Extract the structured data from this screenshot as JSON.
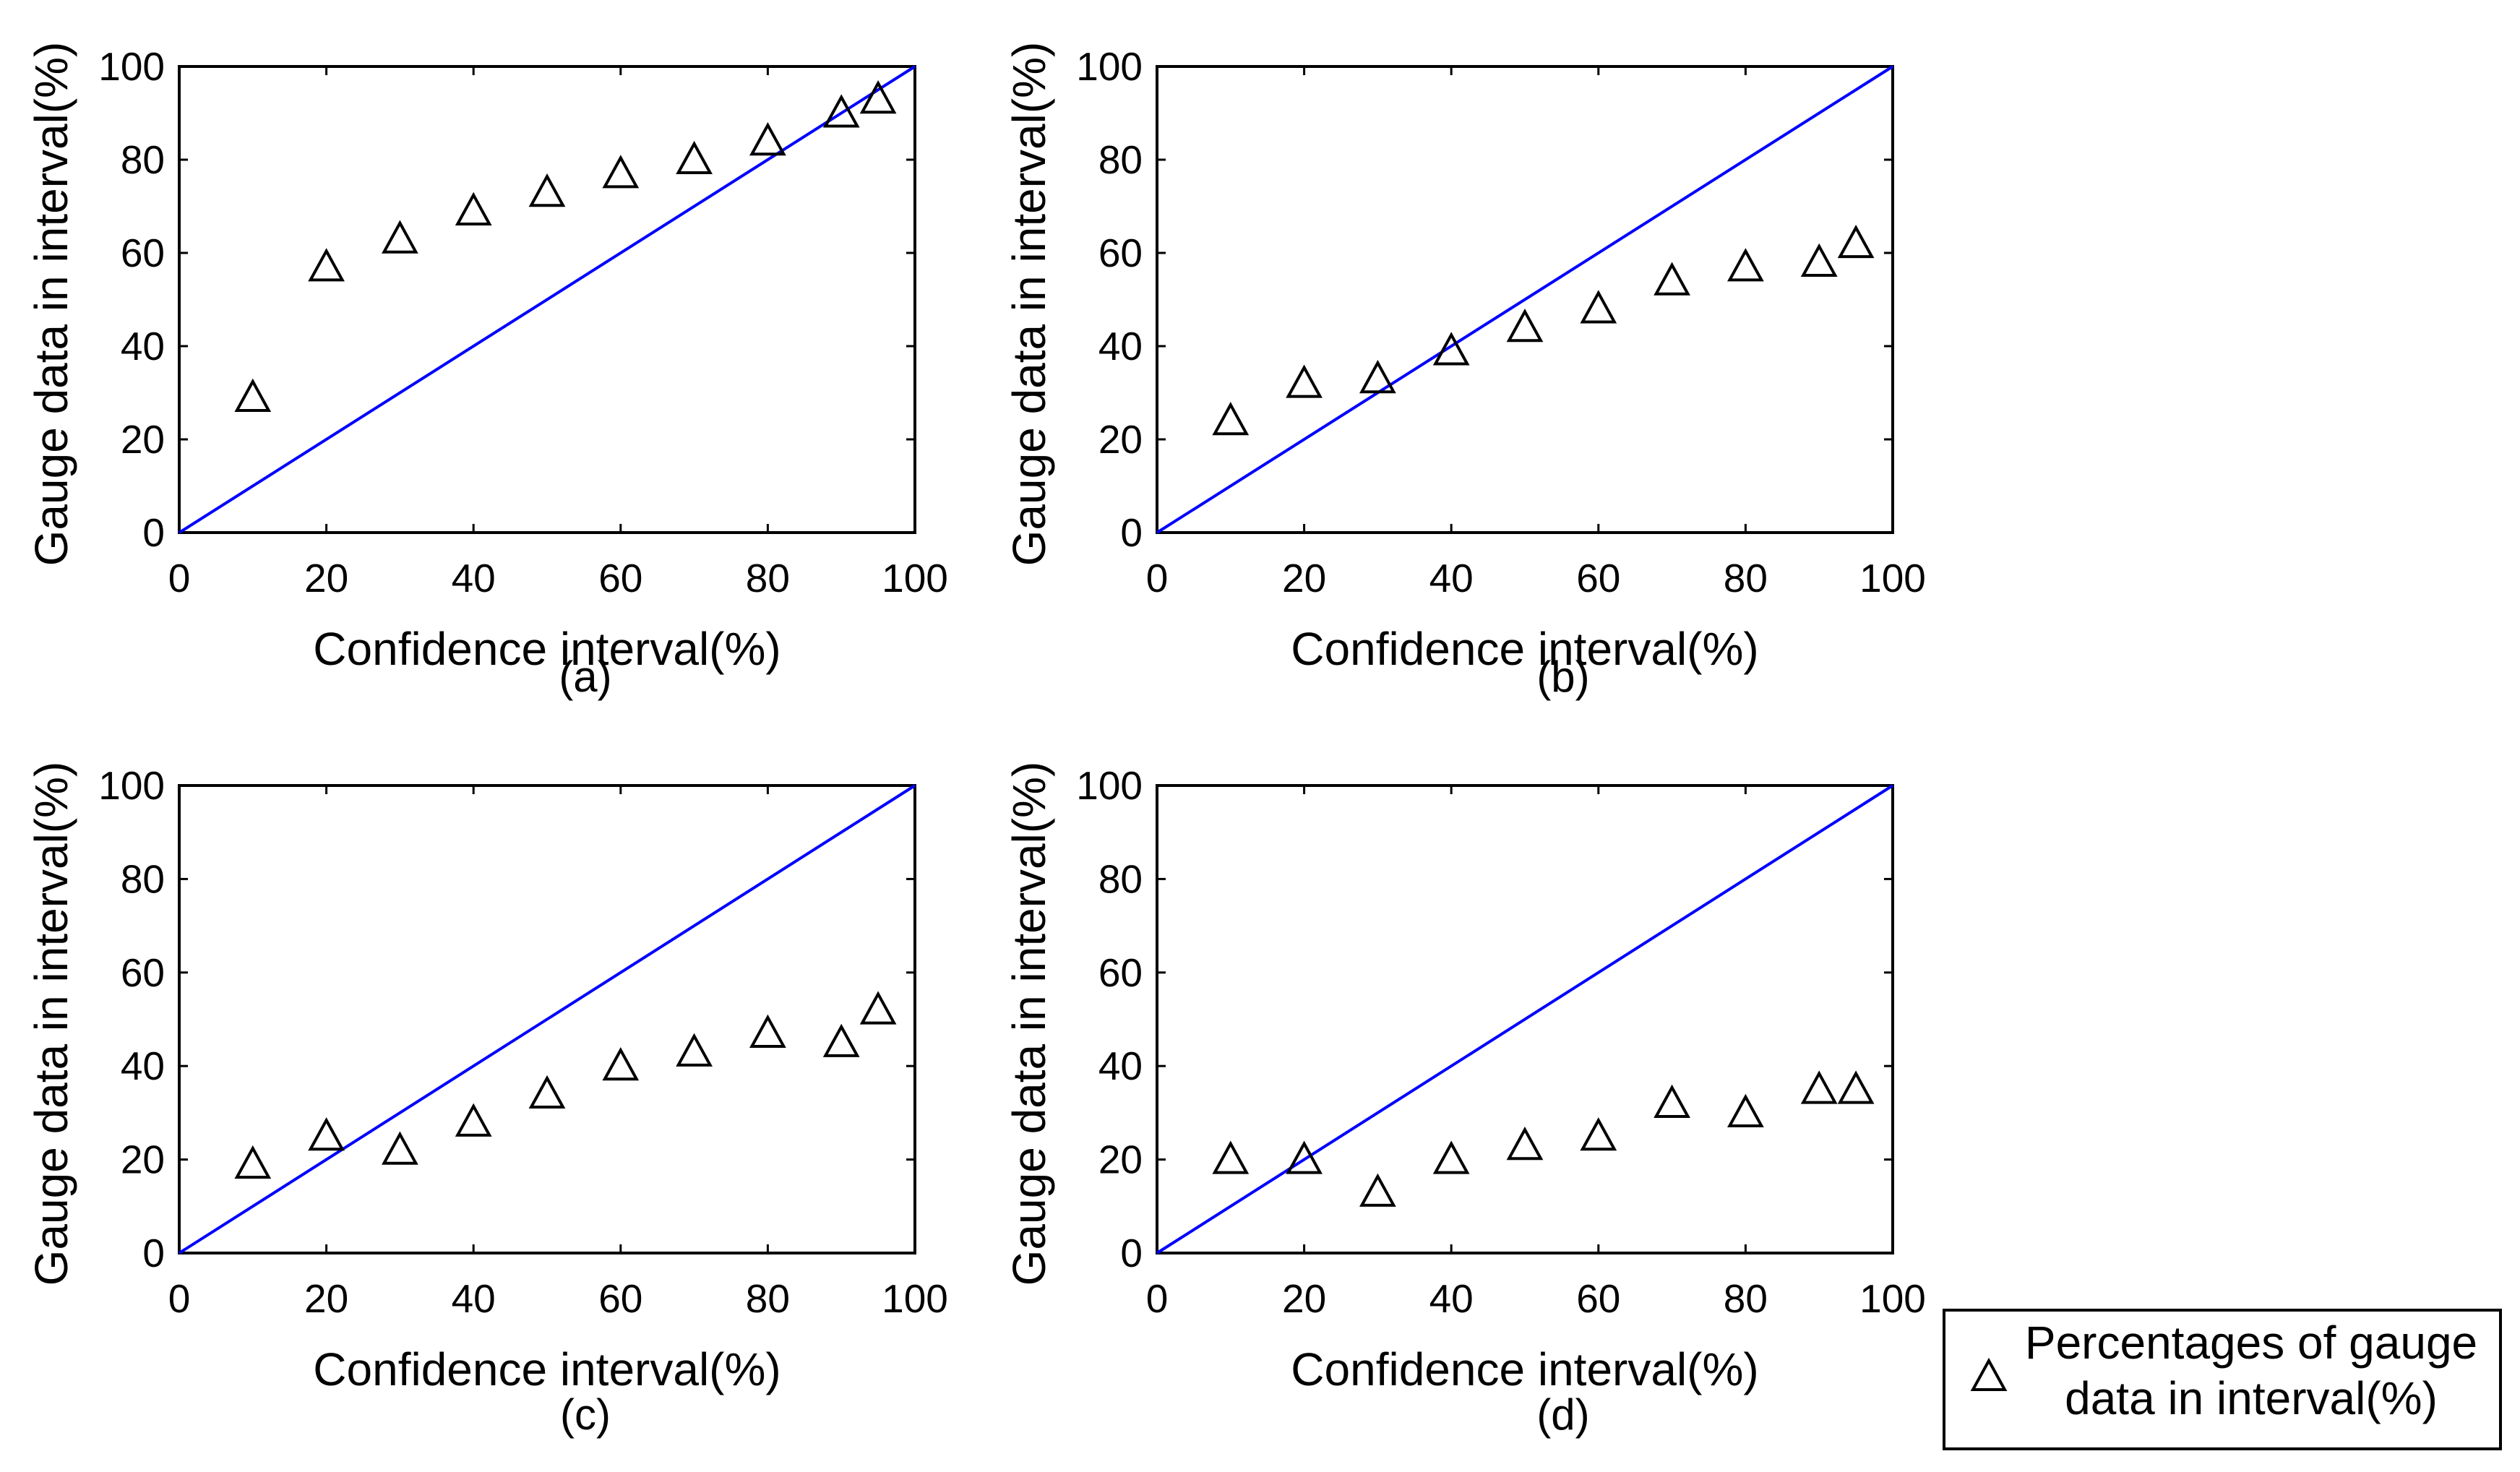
{
  "chart_data": [
    {
      "type": "scatter",
      "panel_label": "(a)",
      "xlabel": "Confidence interval(%)",
      "ylabel": "Gauge data in interval(%)",
      "xlim": [
        0,
        100
      ],
      "ylim": [
        0,
        100
      ],
      "xticks": [
        "0",
        "20",
        "40",
        "60",
        "80",
        "100"
      ],
      "yticks": [
        "0",
        "20",
        "40",
        "60",
        "80",
        "100"
      ],
      "reference_line": {
        "x": [
          0,
          100
        ],
        "y": [
          0,
          100
        ],
        "color": "#0000ff"
      },
      "series": [
        {
          "name": "Percentages of gauge data in interval(%)",
          "marker": "triangle",
          "x": [
            10,
            20,
            30,
            40,
            50,
            60,
            70,
            80,
            90,
            95
          ],
          "y": [
            29,
            57,
            63,
            69,
            73,
            77,
            80,
            84,
            90,
            93
          ]
        }
      ]
    },
    {
      "type": "scatter",
      "panel_label": "(b)",
      "xlabel": "Confidence interval(%)",
      "ylabel": "Gauge data in interval(%)",
      "xlim": [
        0,
        100
      ],
      "ylim": [
        0,
        100
      ],
      "xticks": [
        "0",
        "20",
        "40",
        "60",
        "80",
        "100"
      ],
      "yticks": [
        "0",
        "20",
        "40",
        "60",
        "80",
        "100"
      ],
      "reference_line": {
        "x": [
          0,
          100
        ],
        "y": [
          0,
          100
        ],
        "color": "#0000ff"
      },
      "series": [
        {
          "name": "Percentages of gauge data in interval(%)",
          "marker": "triangle",
          "x": [
            10,
            20,
            30,
            40,
            50,
            60,
            70,
            80,
            90,
            95
          ],
          "y": [
            24,
            32,
            33,
            39,
            44,
            48,
            54,
            57,
            58,
            62
          ]
        }
      ]
    },
    {
      "type": "scatter",
      "panel_label": "(c)",
      "xlabel": "Confidence interval(%)",
      "ylabel": "Gauge data in interval(%)",
      "xlim": [
        0,
        100
      ],
      "ylim": [
        0,
        100
      ],
      "xticks": [
        "0",
        "20",
        "40",
        "60",
        "80",
        "100"
      ],
      "yticks": [
        "0",
        "20",
        "40",
        "60",
        "80",
        "100"
      ],
      "reference_line": {
        "x": [
          0,
          100
        ],
        "y": [
          0,
          100
        ],
        "color": "#0000ff"
      },
      "series": [
        {
          "name": "Percentages of gauge data in interval(%)",
          "marker": "triangle",
          "x": [
            10,
            20,
            30,
            40,
            50,
            60,
            70,
            80,
            90,
            95
          ],
          "y": [
            19,
            25,
            22,
            28,
            34,
            40,
            43,
            47,
            45,
            52
          ]
        }
      ]
    },
    {
      "type": "scatter",
      "panel_label": "(d)",
      "xlabel": "Confidence interval(%)",
      "ylabel": "Gauge data in interval(%)",
      "xlim": [
        0,
        100
      ],
      "ylim": [
        0,
        100
      ],
      "xticks": [
        "0",
        "20",
        "40",
        "60",
        "80",
        "100"
      ],
      "yticks": [
        "0",
        "20",
        "40",
        "60",
        "80",
        "100"
      ],
      "reference_line": {
        "x": [
          0,
          100
        ],
        "y": [
          0,
          100
        ],
        "color": "#0000ff"
      },
      "series": [
        {
          "name": "Percentages of gauge data in interval(%)",
          "marker": "triangle",
          "x": [
            10,
            20,
            30,
            40,
            50,
            60,
            70,
            80,
            90,
            95
          ],
          "y": [
            20,
            20,
            13,
            20,
            23,
            25,
            32,
            30,
            35,
            35
          ]
        }
      ]
    }
  ],
  "legend": {
    "marker": "triangle",
    "line1": "Percentages of gauge",
    "line2": "data in interval(%)"
  },
  "colors": {
    "reference_line": "#0000ff",
    "marker": "#000000",
    "axes": "#000000"
  }
}
